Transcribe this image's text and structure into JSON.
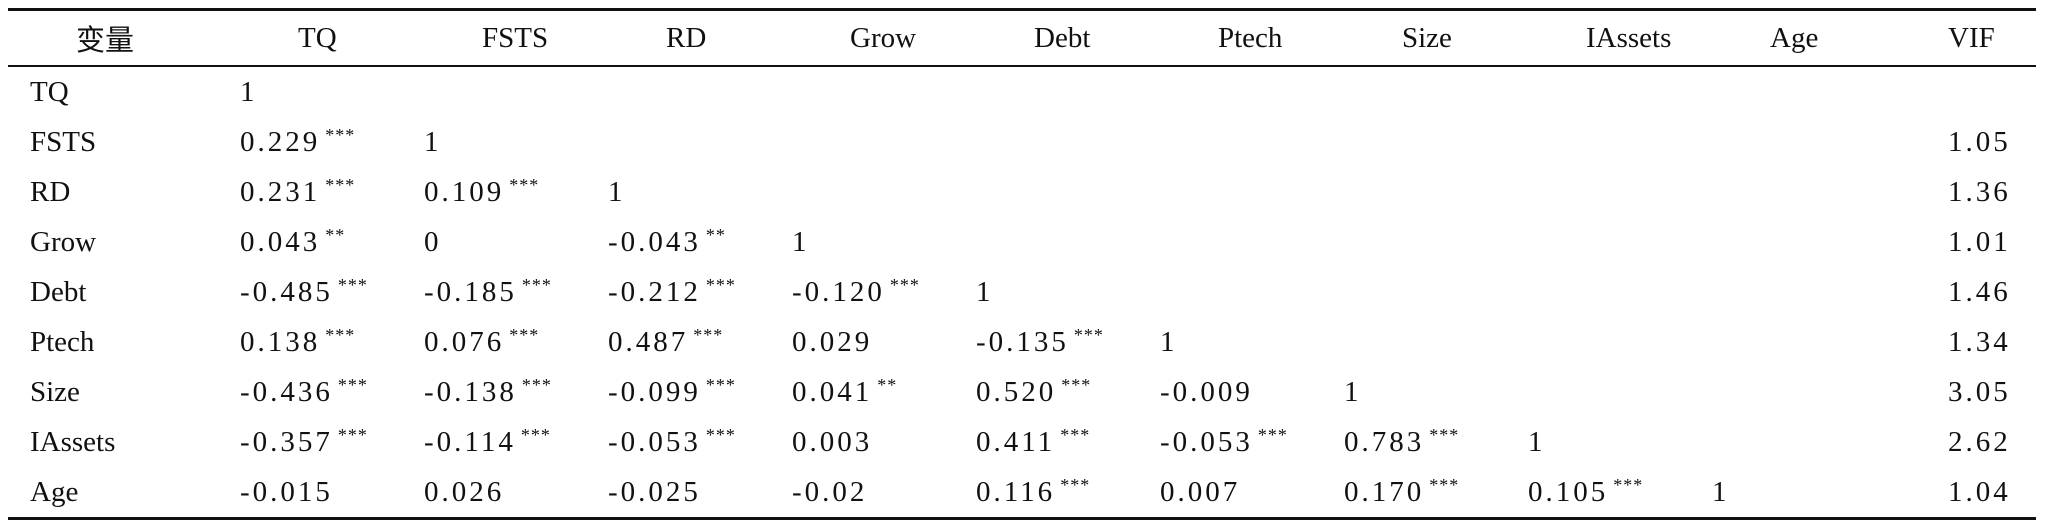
{
  "table": {
    "header_first": "变量",
    "columns": [
      "TQ",
      "FSTS",
      "RD",
      "Grow",
      "Debt",
      "Ptech",
      "Size",
      "IAssets",
      "Age"
    ],
    "vif_header": "VIF",
    "rows": [
      {
        "name": "TQ",
        "cells": [
          [
            "1",
            ""
          ],
          [
            "",
            ""
          ],
          [
            "",
            ""
          ],
          [
            "",
            ""
          ],
          [
            "",
            ""
          ],
          [
            "",
            ""
          ],
          [
            "",
            ""
          ],
          [
            "",
            ""
          ],
          [
            "",
            ""
          ]
        ],
        "vif": ""
      },
      {
        "name": "FSTS",
        "cells": [
          [
            "0.229",
            "***"
          ],
          [
            "1",
            ""
          ],
          [
            "",
            ""
          ],
          [
            "",
            ""
          ],
          [
            "",
            ""
          ],
          [
            "",
            ""
          ],
          [
            "",
            ""
          ],
          [
            "",
            ""
          ],
          [
            "",
            ""
          ]
        ],
        "vif": "1.05"
      },
      {
        "name": "RD",
        "cells": [
          [
            "0.231",
            "***"
          ],
          [
            "0.109",
            "***"
          ],
          [
            "1",
            ""
          ],
          [
            "",
            ""
          ],
          [
            "",
            ""
          ],
          [
            "",
            ""
          ],
          [
            "",
            ""
          ],
          [
            "",
            ""
          ],
          [
            "",
            ""
          ]
        ],
        "vif": "1.36"
      },
      {
        "name": "Grow",
        "cells": [
          [
            "0.043",
            "**"
          ],
          [
            "0",
            ""
          ],
          [
            "-0.043",
            "**"
          ],
          [
            "1",
            ""
          ],
          [
            "",
            ""
          ],
          [
            "",
            ""
          ],
          [
            "",
            ""
          ],
          [
            "",
            ""
          ],
          [
            "",
            ""
          ]
        ],
        "vif": "1.01"
      },
      {
        "name": "Debt",
        "cells": [
          [
            "-0.485",
            "***"
          ],
          [
            "-0.185",
            "***"
          ],
          [
            "-0.212",
            "***"
          ],
          [
            "-0.120",
            "***"
          ],
          [
            "1",
            ""
          ],
          [
            "",
            ""
          ],
          [
            "",
            ""
          ],
          [
            "",
            ""
          ],
          [
            "",
            ""
          ]
        ],
        "vif": "1.46"
      },
      {
        "name": "Ptech",
        "cells": [
          [
            "0.138",
            "***"
          ],
          [
            "0.076",
            "***"
          ],
          [
            "0.487",
            "***"
          ],
          [
            "0.029",
            ""
          ],
          [
            "-0.135",
            "***"
          ],
          [
            "1",
            ""
          ],
          [
            "",
            ""
          ],
          [
            "",
            ""
          ],
          [
            "",
            ""
          ]
        ],
        "vif": "1.34"
      },
      {
        "name": "Size",
        "cells": [
          [
            "-0.436",
            "***"
          ],
          [
            "-0.138",
            "***"
          ],
          [
            "-0.099",
            "***"
          ],
          [
            "0.041",
            "**"
          ],
          [
            "0.520",
            "***"
          ],
          [
            "-0.009",
            ""
          ],
          [
            "1",
            ""
          ],
          [
            "",
            ""
          ],
          [
            "",
            ""
          ]
        ],
        "vif": "3.05"
      },
      {
        "name": "IAssets",
        "cells": [
          [
            "-0.357",
            "***"
          ],
          [
            "-0.114",
            "***"
          ],
          [
            "-0.053",
            "***"
          ],
          [
            "0.003",
            ""
          ],
          [
            "0.411",
            "***"
          ],
          [
            "-0.053",
            "***"
          ],
          [
            "0.783",
            "***"
          ],
          [
            "1",
            ""
          ],
          [
            "",
            ""
          ]
        ],
        "vif": "2.62"
      },
      {
        "name": "Age",
        "cells": [
          [
            "-0.015",
            ""
          ],
          [
            "0.026",
            ""
          ],
          [
            "-0.025",
            ""
          ],
          [
            "-0.02",
            ""
          ],
          [
            "0.116",
            "***"
          ],
          [
            "0.007",
            ""
          ],
          [
            "0.170",
            "***"
          ],
          [
            "0.105",
            "***"
          ],
          [
            "1",
            ""
          ]
        ],
        "vif": "1.04"
      }
    ]
  }
}
